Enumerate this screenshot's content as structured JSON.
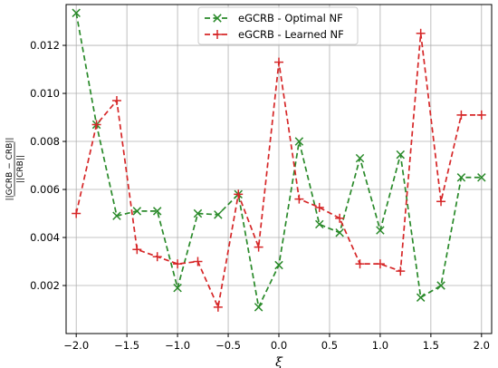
{
  "chart_data": {
    "type": "line",
    "title": "",
    "xlabel": "ξ",
    "ylabel_numerator": "||GCRB − CRB||",
    "ylabel_denominator": "||CRB||",
    "xlim": [
      -2.1,
      2.1
    ],
    "ylim": [
      0.0,
      0.0137
    ],
    "x_ticks": [
      -2.0,
      -1.5,
      -1.0,
      -0.5,
      0.0,
      0.5,
      1.0,
      1.5,
      2.0
    ],
    "x_tick_labels": [
      "−2.0",
      "−1.5",
      "−1.0",
      "−0.5",
      "0.0",
      "0.5",
      "1.0",
      "1.5",
      "2.0"
    ],
    "y_ticks": [
      0.002,
      0.004,
      0.006,
      0.008,
      0.01,
      0.012
    ],
    "y_tick_labels": [
      "0.002",
      "0.004",
      "0.006",
      "0.008",
      "0.010",
      "0.012"
    ],
    "grid": true,
    "legend_position": "top-center",
    "x": [
      -2.0,
      -1.8,
      -1.6,
      -1.4,
      -1.2,
      -1.0,
      -0.8,
      -0.6,
      -0.4,
      -0.2,
      0.0,
      0.2,
      0.4,
      0.6,
      0.8,
      1.0,
      1.2,
      1.4,
      1.6,
      1.8,
      2.0
    ],
    "series": [
      {
        "name": "eGCRB - Optimal NF",
        "color": "#2a8a2a",
        "marker": "x",
        "values": [
          0.01335,
          0.0087,
          0.0049,
          0.0051,
          0.0051,
          0.0019,
          0.005,
          0.00495,
          0.0058,
          0.0011,
          0.00285,
          0.008,
          0.00455,
          0.0042,
          0.0073,
          0.0043,
          0.00745,
          0.0015,
          0.002,
          0.0065,
          0.0065
        ]
      },
      {
        "name": "eGCRB - Learned NF",
        "color": "#d62728",
        "marker": "+",
        "values": [
          0.005,
          0.0087,
          0.0097,
          0.0035,
          0.0032,
          0.0029,
          0.003,
          0.0011,
          0.0058,
          0.0036,
          0.0113,
          0.0056,
          0.00525,
          0.0048,
          0.0029,
          0.0029,
          0.0026,
          0.0125,
          0.0055,
          0.0091,
          0.0091
        ]
      }
    ]
  }
}
